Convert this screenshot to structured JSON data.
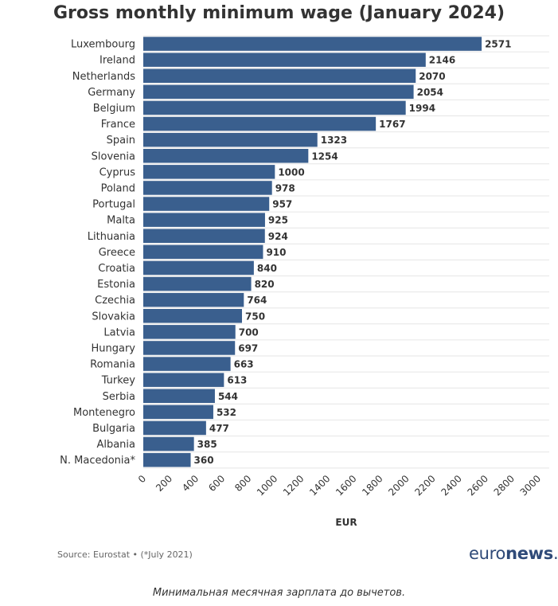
{
  "chart_data": {
    "type": "bar",
    "orientation": "horizontal",
    "title": "Gross monthly minimum wage (January 2024)",
    "xlabel": "EUR",
    "ylabel": "",
    "xlim": [
      0,
      3000
    ],
    "xticks": [
      0,
      200,
      400,
      600,
      800,
      1000,
      1200,
      1400,
      1600,
      1800,
      2000,
      2200,
      2400,
      2600,
      2800,
      3000
    ],
    "categories": [
      "Luxembourg",
      "Ireland",
      "Netherlands",
      "Germany",
      "Belgium",
      "France",
      "Spain",
      "Slovenia",
      "Cyprus",
      "Poland",
      "Portugal",
      "Malta",
      "Lithuania",
      "Greece",
      "Croatia",
      "Estonia",
      "Czechia",
      "Slovakia",
      "Latvia",
      "Hungary",
      "Romania",
      "Turkey",
      "Serbia",
      "Montenegro",
      "Bulgaria",
      "Albania",
      "N. Macedonia*"
    ],
    "values": [
      2571,
      2146,
      2070,
      2054,
      1994,
      1767,
      1323,
      1254,
      1000,
      978,
      957,
      925,
      924,
      910,
      840,
      820,
      764,
      750,
      700,
      697,
      663,
      613,
      544,
      532,
      477,
      385,
      360
    ],
    "bar_color": "#3a5f8e",
    "grid": true
  },
  "footer": {
    "source": "Source: Eurostat • (*July 2021)",
    "logo_left": "euro",
    "logo_right": "news",
    "logo_dot": "."
  },
  "caption": "Минимальная месячная зарплата до вычетов."
}
